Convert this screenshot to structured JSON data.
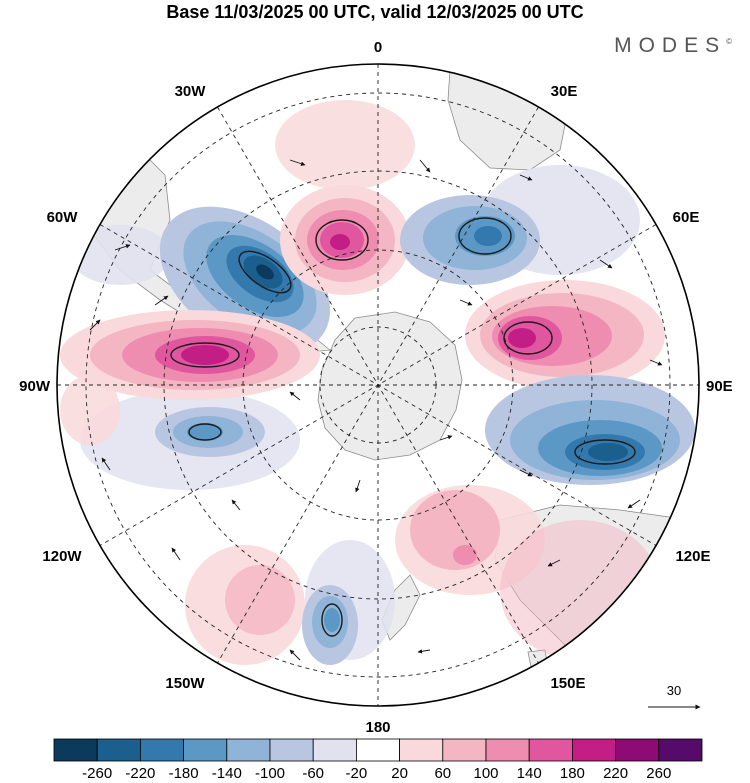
{
  "title": "Base 11/03/2025 00 UTC, valid 12/03/2025 00 UTC",
  "brand": "MODES",
  "brand_mark": "©",
  "longitude_labels": {
    "lon_0": "0",
    "lon_30e": "30E",
    "lon_60e": "60E",
    "lon_90e": "90E",
    "lon_120e": "120E",
    "lon_150e": "150E",
    "lon_180": "180",
    "lon_150w": "150W",
    "lon_120w": "120W",
    "lon_90w": "90W",
    "lon_60w": "60W",
    "lon_30w": "30W"
  },
  "vector_reference": "30",
  "colorbar": {
    "ticks": [
      "-260",
      "-220",
      "-180",
      "-140",
      "-100",
      "-60",
      "-20",
      "20",
      "60",
      "100",
      "140",
      "180",
      "220",
      "260"
    ],
    "colors": [
      "#0b3a5c",
      "#1b5f8e",
      "#3379ae",
      "#5c98c6",
      "#8fb4d8",
      "#b9c6e2",
      "#e2e1f0",
      "#ffffff",
      "#f9d9dc",
      "#f4b6c3",
      "#ef8db0",
      "#e0569f",
      "#c21e86",
      "#8e0a74",
      "#560b6b"
    ]
  },
  "colors": {
    "ocean": "#ffffff",
    "land": "#ececec",
    "coast": "#8c8c8c",
    "graticule": "#222222"
  }
}
